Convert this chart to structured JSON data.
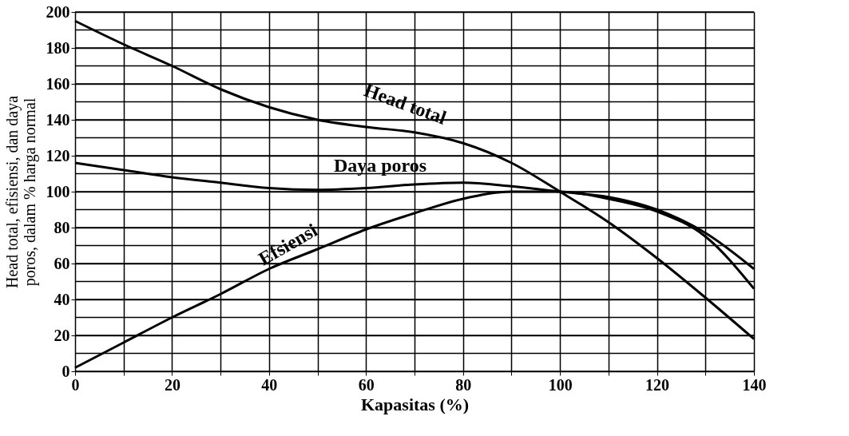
{
  "chart_data": {
    "type": "line",
    "xlabel": "Kapasitas (%)",
    "ylabel": "Head total, efisiensi, dan daya\nporos, dalam % harga normal",
    "x": [
      0,
      10,
      20,
      30,
      40,
      50,
      60,
      70,
      80,
      90,
      100,
      110,
      120,
      130,
      140
    ],
    "series": [
      {
        "color": "#000000",
        "values": [
          195,
          182,
          170,
          157,
          147,
          140,
          136,
          133,
          127,
          116,
          100,
          83,
          63,
          41,
          18
        ]
      },
      {
        "color": "#000000",
        "values": [
          116,
          112,
          108,
          105,
          102,
          101,
          102,
          104,
          105,
          103,
          100,
          97,
          90,
          77,
          57
        ]
      },
      {
        "color": "#000000",
        "values": [
          2,
          16,
          30,
          43,
          57,
          68,
          79,
          88,
          96,
          100,
          100,
          96,
          89,
          75,
          46
        ]
      }
    ],
    "annotations": [
      "Head total",
      "Daya poros",
      "Efsiensi"
    ],
    "xlim": [
      0,
      140
    ],
    "ylim": [
      0,
      200
    ],
    "xticks": [
      0,
      {
        "value": 10,
        "label": null
      },
      20,
      {
        "value": 30,
        "label": null
      },
      40,
      {
        "value": 50,
        "label": null
      },
      60,
      {
        "value": 70,
        "label": null
      },
      80,
      {
        "value": 90,
        "label": null
      },
      100,
      {
        "value": 110,
        "label": null
      },
      120,
      {
        "value": 130,
        "label": null
      },
      140
    ],
    "yticks": [
      0,
      {
        "value": 10,
        "label": null
      },
      20,
      {
        "value": 30,
        "label": null
      },
      40,
      {
        "value": 50,
        "label": null
      },
      60,
      {
        "value": 70,
        "label": null
      },
      80,
      {
        "value": 90,
        "label": null
      },
      100,
      {
        "value": 110,
        "label": null
      },
      120,
      {
        "value": 130,
        "label": null
      },
      140,
      {
        "value": 150,
        "label": null
      },
      160,
      {
        "value": 170,
        "label": null
      },
      180,
      {
        "value": 190,
        "label": null
      },
      200
    ],
    "grid": true,
    "legend": false,
    "marker": "none",
    "line_style": "solid"
  }
}
